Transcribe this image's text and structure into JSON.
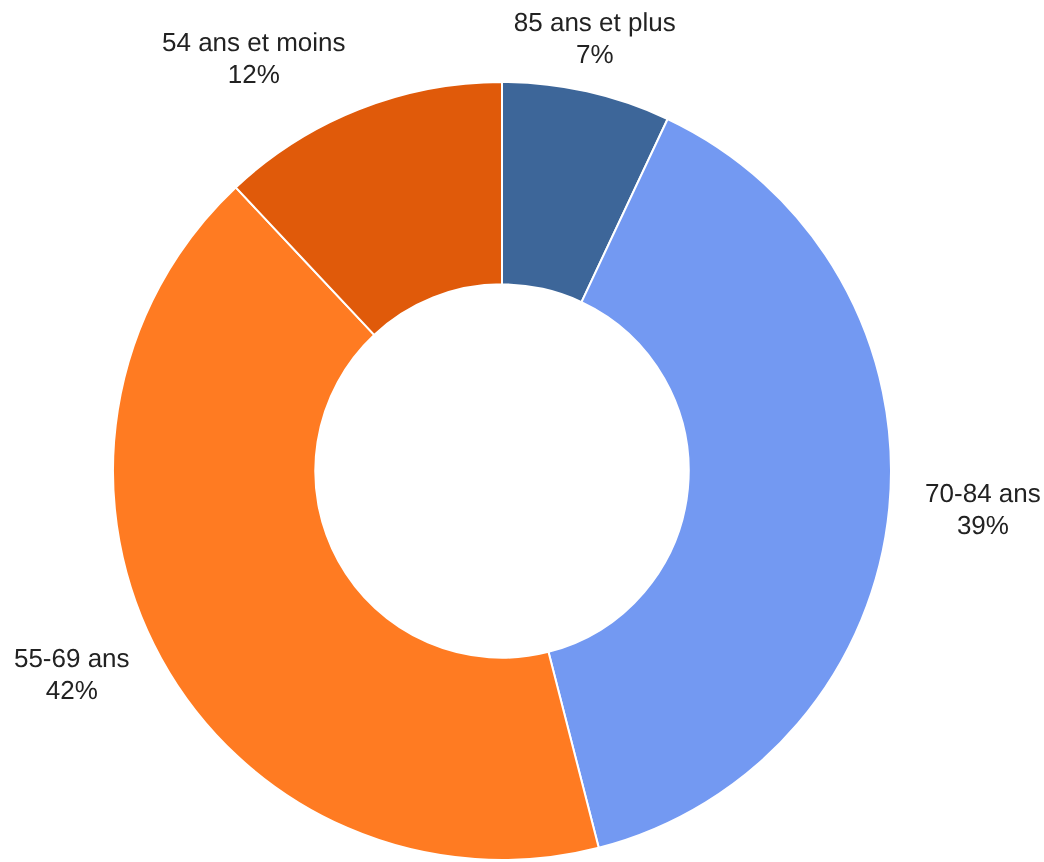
{
  "chart_data": {
    "type": "donut",
    "categories": [
      "85 ans et plus",
      "70-84 ans",
      "55-69 ans",
      "54 ans et moins"
    ],
    "values": [
      7,
      39,
      42,
      12
    ],
    "value_labels": [
      "7%",
      "39%",
      "42%",
      "12%"
    ],
    "colors": [
      "#3d6699",
      "#7399f2",
      "#ff7b22",
      "#e05a0a"
    ],
    "legend": false
  }
}
